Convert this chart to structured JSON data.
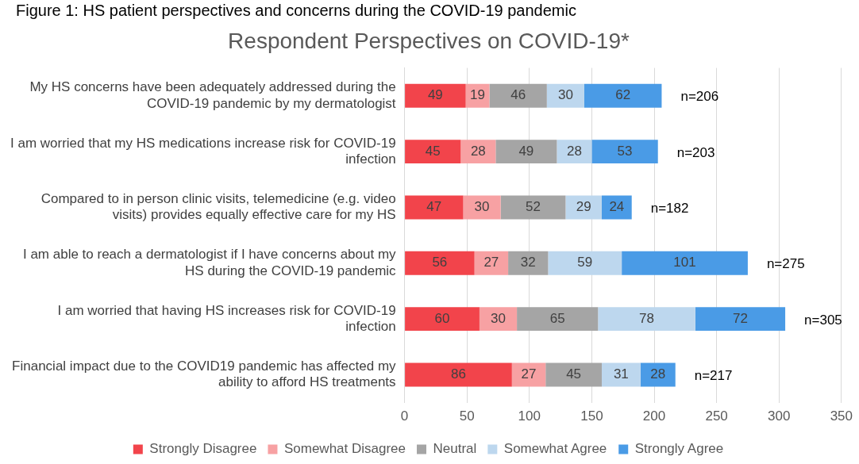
{
  "chart_data": {
    "type": "bar",
    "orientation": "horizontal",
    "stacked": true,
    "title": "Respondent Perspectives on COVID-19*",
    "annotations": [
      "Figure 1: HS patient perspectives and concerns during the COVID-19 pandemic"
    ],
    "categories": [
      "My HS concerns have been adequately addressed during the COVID-19 pandemic by my dermatologist",
      "I am worried that my HS medications increase risk for COVID-19 infection",
      "Compared to in person clinic visits, telemedicine (e.g. video visits) provides equally effective care for my HS",
      "I am able to reach a dermatologist if I have concerns about my HS during the COVID-19 pandemic",
      "I am worried that having HS increases risk for COVID-19 infection",
      "Financial impact due to the COVID19 pandemic has affected my ability to afford HS treatments"
    ],
    "series": [
      {
        "name": "Strongly Disagree",
        "color": "#f2444b",
        "values": [
          49,
          45,
          47,
          56,
          60,
          86
        ]
      },
      {
        "name": "Somewhat Disagree",
        "color": "#f7a1a3",
        "values": [
          19,
          28,
          30,
          27,
          30,
          27
        ]
      },
      {
        "name": "Neutral",
        "color": "#a5a5a5",
        "values": [
          46,
          49,
          52,
          32,
          65,
          45
        ]
      },
      {
        "name": "Somewhat Agree",
        "color": "#bdd7ee",
        "values": [
          30,
          28,
          29,
          59,
          78,
          31
        ]
      },
      {
        "name": "Strongly Agree",
        "color": "#4a9be6",
        "values": [
          62,
          53,
          24,
          101,
          72,
          28
        ]
      }
    ],
    "totals": [
      "n=206",
      "n=203",
      "n=182",
      "n=275",
      "n=305",
      "n=217"
    ],
    "data_labels": true,
    "xlim": [
      0,
      350
    ],
    "xticks": [
      0,
      50,
      100,
      150,
      200,
      250,
      300,
      350
    ],
    "grid": "x",
    "legend": "bottom"
  }
}
